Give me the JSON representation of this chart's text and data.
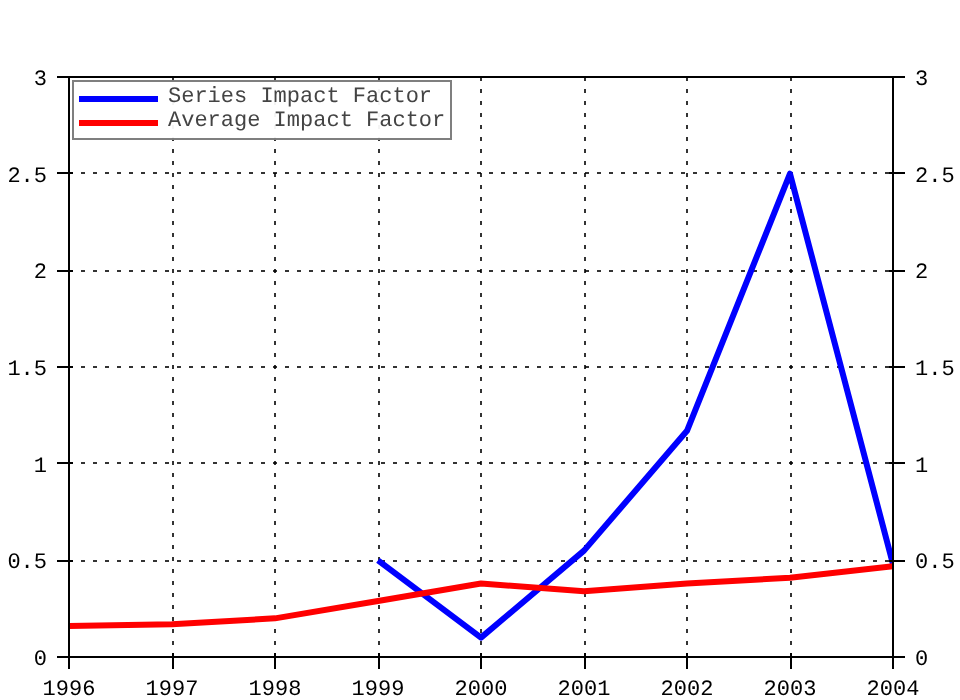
{
  "chart_data": {
    "type": "line",
    "x": [
      1996,
      1997,
      1998,
      1999,
      2000,
      2001,
      2002,
      2003,
      2004
    ],
    "series": [
      {
        "name": "Series Impact Factor",
        "color": "#0000ff",
        "values": [
          null,
          null,
          null,
          0.5,
          0.1,
          0.55,
          1.17,
          2.5,
          0.48
        ]
      },
      {
        "name": "Average Impact Factor",
        "color": "#ff0000",
        "values": [
          0.16,
          0.17,
          0.2,
          0.29,
          0.38,
          0.34,
          0.38,
          0.41,
          0.47
        ]
      }
    ],
    "xlim": [
      1996,
      2004
    ],
    "xticks": [
      1996,
      1997,
      1998,
      1999,
      2000,
      2001,
      2002,
      2003,
      2004
    ],
    "ylim": [
      0,
      3
    ],
    "yticks": [
      0,
      0.5,
      1,
      1.5,
      2,
      2.5,
      3
    ],
    "y2lim": [
      0,
      3
    ],
    "y2ticks": [
      0,
      0.5,
      1,
      1.5,
      2,
      2.5,
      3
    ],
    "grid": true,
    "legend": "top left",
    "marker": "none",
    "line_style": "solid"
  }
}
